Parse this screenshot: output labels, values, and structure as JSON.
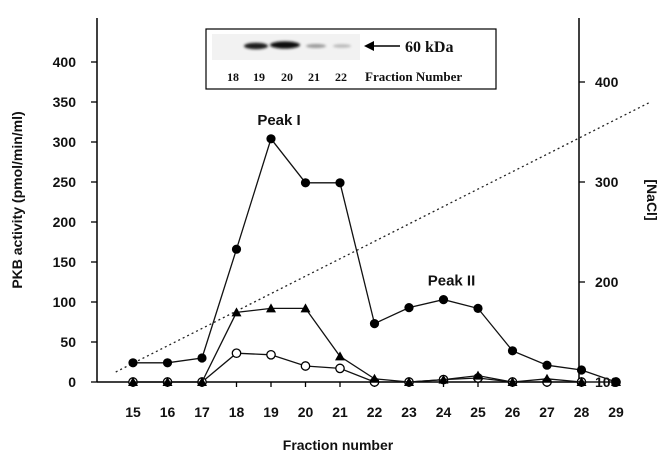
{
  "chart_data": {
    "type": "line",
    "xlabel": "Fraction number",
    "ylabel": "PKB activity (pmol/min/ml)",
    "y2label": "[NaCl]",
    "x": [
      15,
      16,
      17,
      18,
      19,
      20,
      21,
      22,
      23,
      24,
      25,
      26,
      27,
      28,
      29
    ],
    "ylim": [
      0,
      450
    ],
    "y_ticks": [
      0,
      50,
      100,
      150,
      200,
      250,
      300,
      350,
      400
    ],
    "y2lim": [
      100,
      400
    ],
    "y2_ticks": [
      100,
      200,
      300,
      400
    ],
    "grid": false,
    "legend": "none",
    "series": [
      {
        "marker": "filled-circle",
        "values": [
          24,
          24,
          30,
          166,
          304,
          249,
          249,
          73,
          93,
          103,
          92,
          39,
          21,
          15,
          0
        ]
      },
      {
        "marker": "filled-triangle",
        "values": [
          0,
          0,
          0,
          87,
          92,
          92,
          32,
          4,
          0,
          3,
          8,
          0,
          4,
          0,
          0
        ]
      },
      {
        "marker": "open-circle",
        "values": [
          0,
          0,
          0,
          36,
          34,
          20,
          17,
          0,
          0,
          3,
          5,
          0,
          0,
          0,
          0
        ]
      }
    ],
    "salt_gradient": {
      "style": "dotted",
      "axis": "right",
      "start": [
        14.5,
        110
      ],
      "end": [
        30,
        380
      ]
    },
    "annotations": [
      {
        "text": "Peak I",
        "x": 19,
        "y": 304
      },
      {
        "text": "Peak II",
        "x": 24,
        "y": 103
      }
    ],
    "inset": {
      "arrow_label": "60 kDa",
      "lane_labels": [
        "18",
        "19",
        "20",
        "21",
        "22"
      ],
      "lanes_label": "Fraction Number"
    }
  }
}
